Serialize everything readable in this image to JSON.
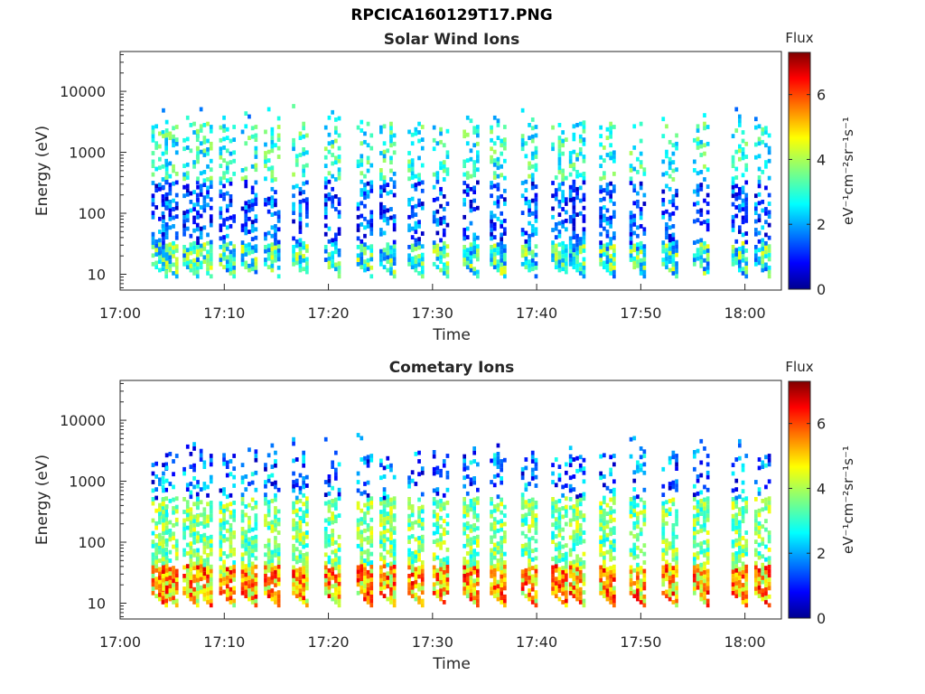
{
  "figure_title": "RPCICA160129T17.PNG",
  "colorbar": {
    "label_top": "Flux",
    "unit_label": "eV⁻¹cm⁻²sr⁻¹s⁻¹",
    "ticks": [
      "0",
      "2",
      "4",
      "6"
    ],
    "range": [
      0,
      7.3
    ],
    "colormap": "jet"
  },
  "chart_data": [
    {
      "type": "heatmap",
      "title": "Solar Wind Ions",
      "xlabel": "Time",
      "ylabel": "Energy (eV)",
      "x_ticks": [
        "17:00",
        "17:10",
        "17:20",
        "17:30",
        "17:40",
        "17:50",
        "18:00"
      ],
      "x_range_minutes": [
        0,
        63.5
      ],
      "y_scale": "log",
      "y_ticks": [
        "10",
        "100",
        "1000",
        "10000"
      ],
      "y_range": [
        5.5,
        45000
      ],
      "z_label": "Flux",
      "z_range": [
        0,
        7.3
      ],
      "sweep_start_minutes": [
        3.0,
        4.0,
        6.0,
        7.3,
        9.5,
        11.6,
        13.8,
        16.5,
        19.6,
        22.7,
        24.9,
        27.6,
        30.0,
        32.9,
        35.5,
        38.5,
        41.4,
        43.1,
        46.0,
        48.9,
        52.0,
        55.0,
        58.7,
        60.9
      ],
      "features": [
        {
          "energy_band": "15-30 eV",
          "typical_flux": "0.5-4.5"
        },
        {
          "energy_band": "50-300 eV",
          "typical_flux": "0.5-2.5"
        },
        {
          "energy_band": "300-3000 eV",
          "typical_flux": "2-4"
        }
      ]
    },
    {
      "type": "heatmap",
      "title": "Cometary Ions",
      "xlabel": "Time",
      "ylabel": "Energy (eV)",
      "x_ticks": [
        "17:00",
        "17:10",
        "17:20",
        "17:30",
        "17:40",
        "17:50",
        "18:00"
      ],
      "x_range_minutes": [
        0,
        63.5
      ],
      "y_scale": "log",
      "y_ticks": [
        "10",
        "100",
        "1000",
        "10000"
      ],
      "y_range": [
        5.5,
        45000
      ],
      "z_label": "Flux",
      "z_range": [
        0,
        7.3
      ],
      "sweep_start_minutes": [
        3.0,
        4.0,
        6.0,
        7.3,
        9.5,
        11.6,
        13.8,
        16.5,
        19.6,
        22.7,
        24.9,
        27.6,
        30.0,
        32.9,
        35.5,
        38.5,
        41.4,
        43.1,
        46.0,
        48.9,
        52.0,
        55.0,
        58.7,
        60.9
      ],
      "features": [
        {
          "energy_band": "15-40 eV",
          "typical_flux": "3.5-6.5"
        },
        {
          "energy_band": "40-500 eV",
          "typical_flux": "2.5-4.5"
        },
        {
          "energy_band": "500-5000 eV",
          "typical_flux": "0.5-3"
        }
      ]
    }
  ]
}
